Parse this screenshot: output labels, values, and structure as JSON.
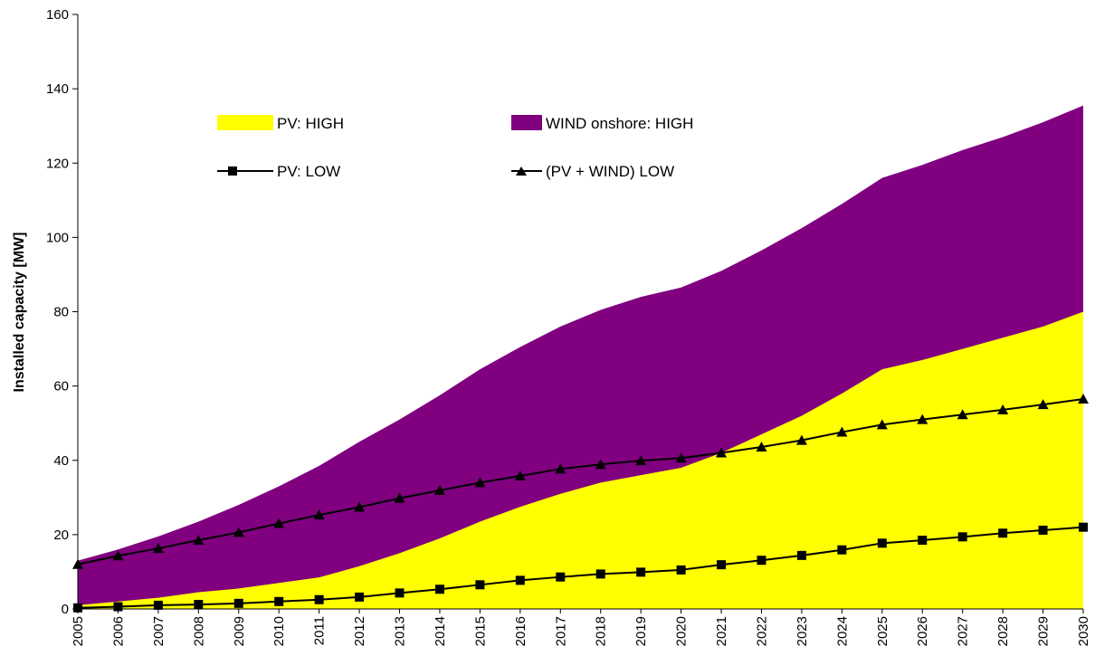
{
  "chart_data": {
    "type": "area",
    "ylabel": "Installed capacity [MW]",
    "xlabel": "",
    "ylim": [
      0,
      160
    ],
    "yticks": [
      0,
      20,
      40,
      60,
      80,
      100,
      120,
      140,
      160
    ],
    "grid": false,
    "legend_position": "top-center",
    "x": [
      "2005",
      "2006",
      "2007",
      "2008",
      "2009",
      "2010",
      "2011",
      "2012",
      "2013",
      "2014",
      "2015",
      "2016",
      "2017",
      "2018",
      "2019",
      "2020",
      "2021",
      "2022",
      "2023",
      "2024",
      "2025",
      "2026",
      "2027",
      "2028",
      "2029",
      "2030"
    ],
    "series": [
      {
        "name": "PV: HIGH",
        "kind": "area",
        "color": "#ffff00",
        "values": [
          1,
          2,
          3,
          4.5,
          5.5,
          7,
          8.5,
          11.5,
          15,
          19,
          23.5,
          27.5,
          31,
          34,
          36,
          38,
          42,
          47,
          52,
          58,
          64.5,
          67,
          70,
          73,
          76,
          80
        ]
      },
      {
        "name": "WIND onshore: HIGH",
        "kind": "stacked-area",
        "color": "#800080",
        "values": [
          12,
          14,
          16.5,
          19,
          22.5,
          26,
          30,
          33.5,
          36,
          38.5,
          41,
          43,
          45,
          46.5,
          48,
          48.5,
          49,
          49.5,
          50.5,
          51,
          51.5,
          52.5,
          53.5,
          54,
          55,
          55.5
        ],
        "cumulative_totals": [
          13,
          16,
          19.5,
          23.5,
          28,
          33,
          38.5,
          45,
          51,
          57.5,
          64.5,
          70.5,
          76,
          80.5,
          84,
          86.5,
          91,
          96.5,
          102.5,
          109,
          116,
          119.5,
          123.5,
          127,
          131,
          135.5
        ]
      },
      {
        "name": "PV: LOW",
        "kind": "line",
        "marker": "square",
        "color": "#000000",
        "values": [
          0.3,
          0.6,
          1,
          1.2,
          1.5,
          2,
          2.5,
          3.2,
          4.3,
          5.3,
          6.5,
          7.7,
          8.6,
          9.4,
          9.9,
          10.5,
          11.9,
          13.1,
          14.4,
          15.9,
          17.7,
          18.5,
          19.4,
          20.4,
          21.2,
          22
        ]
      },
      {
        "name": "(PV + WIND) LOW",
        "kind": "line",
        "marker": "triangle",
        "color": "#000000",
        "values": [
          12,
          14.3,
          16.3,
          18.5,
          20.6,
          23,
          25.3,
          27.4,
          29.8,
          31.9,
          34,
          35.8,
          37.7,
          38.9,
          39.9,
          40.6,
          42,
          43.6,
          45.4,
          47.6,
          49.6,
          51,
          52.3,
          53.6,
          55,
          56.5
        ]
      }
    ]
  }
}
